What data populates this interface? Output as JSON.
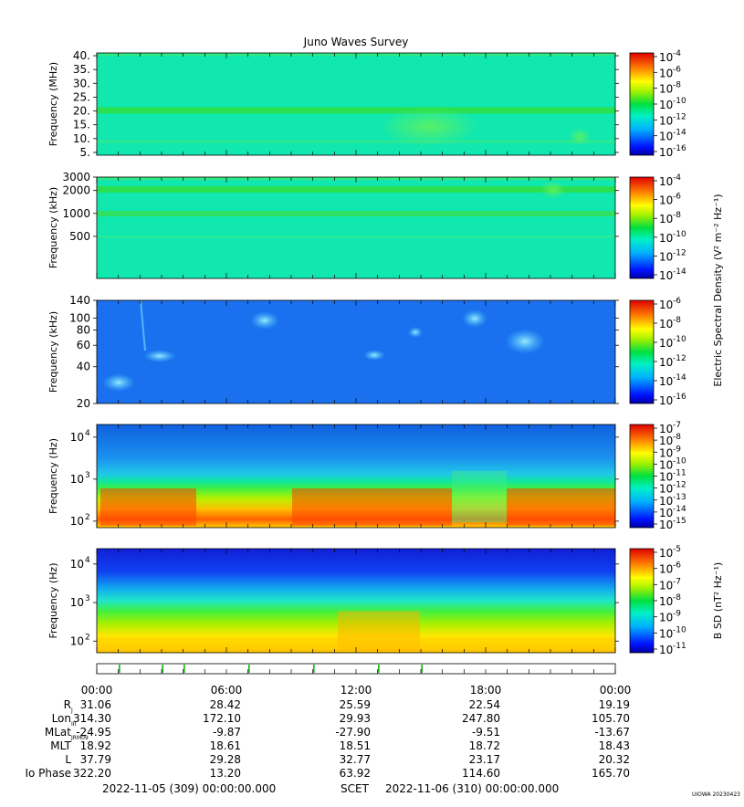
{
  "chart_data": {
    "type": "heatmap",
    "title": "Juno Waves Survey",
    "panels": [
      {
        "ylabel": "Frequency (MHz)",
        "scale": "linear",
        "ylim": [
          4,
          41
        ],
        "yticks": [
          5,
          10,
          15,
          20,
          25,
          30,
          35,
          40
        ],
        "ytick_labels": [
          "5.",
          "10.",
          "15.",
          "20.",
          "25.",
          "30.",
          "35.",
          "40."
        ],
        "colorbar": {
          "exponents": [
            "-4",
            "-6",
            "-8",
            "-10",
            "-12",
            "-14",
            "-16"
          ]
        }
      },
      {
        "ylabel": "Frequency (kHz)",
        "scale": "log",
        "ylim": [
          140,
          3000
        ],
        "yticks": [
          500,
          1000,
          2000,
          3000
        ],
        "ytick_labels": [
          "500",
          "1000",
          "2000",
          "3000"
        ],
        "colorbar": {
          "exponents": [
            "-4",
            "-6",
            "-8",
            "-10",
            "-12",
            "-14"
          ]
        }
      },
      {
        "ylabel": "Frequency (kHz)",
        "scale": "log",
        "ylim": [
          20,
          140
        ],
        "yticks": [
          20,
          40,
          60,
          80,
          100,
          140
        ],
        "ytick_labels": [
          "20",
          "40",
          "60",
          "80",
          "100",
          "140"
        ],
        "colorbar": {
          "exponents": [
            "-6",
            "-8",
            "-10",
            "-12",
            "-14",
            "-16"
          ]
        }
      },
      {
        "ylabel": "Frequency (Hz)",
        "scale": "log",
        "ylim": [
          70,
          20000
        ],
        "yticks": [
          100,
          1000,
          10000
        ],
        "ytick_exponents": [
          "2",
          "3",
          "4"
        ],
        "colorbar": {
          "exponents": [
            "-7",
            "-8",
            "-9",
            "-10",
            "-11",
            "-12",
            "-13",
            "-14",
            "-15"
          ]
        }
      },
      {
        "ylabel": "Frequency (Hz)",
        "scale": "log",
        "ylim": [
          50,
          25000
        ],
        "yticks": [
          100,
          1000,
          10000
        ],
        "ytick_exponents": [
          "2",
          "3",
          "4"
        ],
        "colorbar": {
          "exponents": [
            "-5",
            "-6",
            "-7",
            "-8",
            "-9",
            "-10",
            "-11"
          ]
        }
      }
    ],
    "colorbar_label_e": "Electric Spectral Density (V² m⁻² Hz⁻¹)",
    "colorbar_label_b": "B SD (nT² Hz⁻¹)",
    "x_tick_labels": [
      "00:00",
      "06:00",
      "12:00",
      "18:00",
      "00:00"
    ],
    "ephemeris": [
      {
        "label": "R",
        "sub": "J",
        "values": [
          "31.06",
          "28.42",
          "25.59",
          "22.54",
          "19.19"
        ]
      },
      {
        "label": "Lon",
        "sub": "III",
        "values": [
          "314.30",
          "172.10",
          "29.93",
          "247.80",
          "105.70"
        ]
      },
      {
        "label": "MLat",
        "sub": "JRM09",
        "values": [
          "-24.95",
          "-9.87",
          "-27.90",
          "-9.51",
          "-13.67"
        ]
      },
      {
        "label": "MLT",
        "sub": "",
        "values": [
          "18.92",
          "18.61",
          "18.51",
          "18.72",
          "18.43"
        ]
      },
      {
        "label": "L",
        "sub": "",
        "values": [
          "37.79",
          "29.28",
          "32.77",
          "23.17",
          "20.32"
        ]
      },
      {
        "label": "Io Phase",
        "sub": "",
        "values": [
          "322.20",
          "13.20",
          "63.92",
          "114.60",
          "165.70"
        ]
      }
    ],
    "scet_start": "2022-11-05 (309) 00:00:00.000",
    "scet_label": "SCET",
    "scet_end": "2022-11-06 (310) 00:00:00.000",
    "corner_label": "UIOWA 20230423"
  }
}
